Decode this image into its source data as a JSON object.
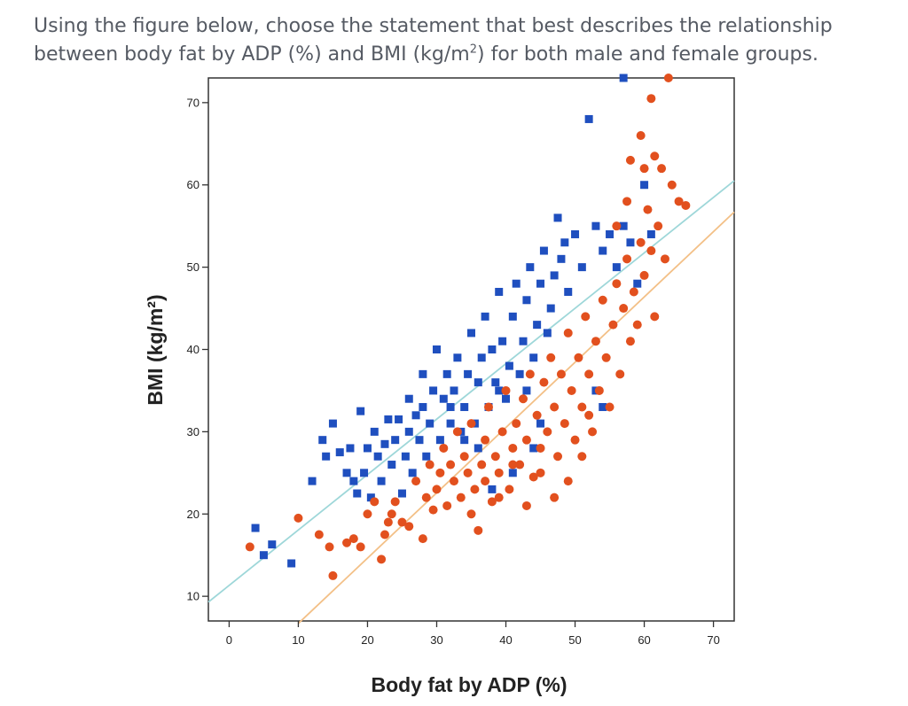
{
  "question": {
    "text_before_sup": "Using the figure below, choose the statement that best describes the relationship between body fat by ADP (%) and BMI (kg/m",
    "sup": "2",
    "text_after_sup": ") for both male and female groups."
  },
  "colors": {
    "male_series": "#1f4fbf",
    "female_series": "#e2501e",
    "male_fit": "#9ed7d9",
    "female_fit": "#f3c087",
    "axis": "#333333"
  },
  "chart_data": {
    "type": "scatter",
    "xlabel": "Body fat by ADP (%)",
    "ylabel": "BMI (kg/m²)",
    "xlim": [
      -3,
      73
    ],
    "ylim": [
      7,
      73
    ],
    "x_ticks": [
      0,
      10,
      20,
      30,
      40,
      50,
      60,
      70
    ],
    "y_ticks": [
      10,
      20,
      30,
      40,
      50,
      60,
      70
    ],
    "x_tick_labels": [
      "0",
      "10",
      "20",
      "30",
      "40",
      "50",
      "60",
      "70"
    ],
    "y_tick_labels": [
      "10",
      "20",
      "30",
      "40",
      "50",
      "60",
      "70"
    ],
    "grid": false,
    "legend": "none",
    "series": [
      {
        "marker": "square",
        "color_key": "male_series",
        "points": [
          [
            3.8,
            18.3
          ],
          [
            5,
            15
          ],
          [
            6.2,
            16.3
          ],
          [
            9,
            14
          ],
          [
            12,
            24
          ],
          [
            13.5,
            29
          ],
          [
            14,
            27
          ],
          [
            15,
            31
          ],
          [
            16,
            27.5
          ],
          [
            17,
            25
          ],
          [
            17.5,
            28
          ],
          [
            18,
            24
          ],
          [
            18.5,
            22.5
          ],
          [
            19,
            32.5
          ],
          [
            19.5,
            25
          ],
          [
            20,
            28
          ],
          [
            20.5,
            22
          ],
          [
            21,
            30
          ],
          [
            21.5,
            27
          ],
          [
            22,
            24
          ],
          [
            22.5,
            28.5
          ],
          [
            23,
            31.5
          ],
          [
            23.5,
            26
          ],
          [
            24,
            29
          ],
          [
            24.5,
            31.5
          ],
          [
            25,
            22.5
          ],
          [
            25.5,
            27
          ],
          [
            26,
            30
          ],
          [
            26.5,
            25
          ],
          [
            27,
            32
          ],
          [
            27.5,
            29
          ],
          [
            28,
            33
          ],
          [
            28.5,
            27
          ],
          [
            29,
            31
          ],
          [
            29.5,
            35
          ],
          [
            30,
            40
          ],
          [
            30.5,
            29
          ],
          [
            31,
            34
          ],
          [
            31.5,
            37
          ],
          [
            32,
            31
          ],
          [
            32.5,
            35
          ],
          [
            33,
            39
          ],
          [
            33.5,
            30
          ],
          [
            34,
            33
          ],
          [
            34.5,
            37
          ],
          [
            35,
            42
          ],
          [
            35.5,
            31
          ],
          [
            36,
            36
          ],
          [
            36.5,
            39
          ],
          [
            37,
            44
          ],
          [
            37.5,
            33
          ],
          [
            38,
            40
          ],
          [
            38.5,
            36
          ],
          [
            39,
            47
          ],
          [
            39.5,
            41
          ],
          [
            40,
            34
          ],
          [
            40.5,
            38
          ],
          [
            41,
            44
          ],
          [
            41.5,
            48
          ],
          [
            42,
            37
          ],
          [
            42.5,
            41
          ],
          [
            43,
            46
          ],
          [
            43.5,
            50
          ],
          [
            44,
            39
          ],
          [
            44.5,
            43
          ],
          [
            45,
            48
          ],
          [
            45.5,
            52
          ],
          [
            46,
            42
          ],
          [
            46.5,
            45
          ],
          [
            47,
            49
          ],
          [
            47.5,
            56
          ],
          [
            48,
            51
          ],
          [
            48.5,
            53
          ],
          [
            49,
            47
          ],
          [
            50,
            54
          ],
          [
            51,
            50
          ],
          [
            52,
            68
          ],
          [
            53,
            55
          ],
          [
            54,
            52
          ],
          [
            55,
            54
          ],
          [
            56,
            50
          ],
          [
            57,
            55
          ],
          [
            58,
            53
          ],
          [
            59,
            48
          ],
          [
            60,
            60
          ],
          [
            61,
            54
          ],
          [
            57,
            73
          ],
          [
            53,
            35
          ],
          [
            54,
            33
          ],
          [
            44,
            28
          ],
          [
            45,
            31
          ],
          [
            41,
            25
          ],
          [
            38,
            23
          ],
          [
            34,
            29
          ],
          [
            36,
            28
          ],
          [
            32,
            33
          ],
          [
            28,
            37
          ],
          [
            26,
            34
          ],
          [
            39,
            35
          ],
          [
            43,
            35
          ]
        ]
      },
      {
        "marker": "circle",
        "color_key": "female_series",
        "points": [
          [
            3,
            16
          ],
          [
            10,
            19.5
          ],
          [
            13,
            17.5
          ],
          [
            14.5,
            16
          ],
          [
            15,
            12.5
          ],
          [
            17,
            16.5
          ],
          [
            18,
            17
          ],
          [
            19,
            16
          ],
          [
            20,
            20
          ],
          [
            21,
            21.5
          ],
          [
            22,
            14.5
          ],
          [
            22.5,
            17.5
          ],
          [
            23,
            19
          ],
          [
            23.5,
            20
          ],
          [
            24,
            21.5
          ],
          [
            25,
            19
          ],
          [
            26,
            18.5
          ],
          [
            27,
            24
          ],
          [
            28,
            17
          ],
          [
            28.5,
            22
          ],
          [
            29,
            26
          ],
          [
            29.5,
            20.5
          ],
          [
            30,
            23
          ],
          [
            30.5,
            25
          ],
          [
            31,
            28
          ],
          [
            31.5,
            21
          ],
          [
            32,
            26
          ],
          [
            32.5,
            24
          ],
          [
            33,
            30
          ],
          [
            33.5,
            22
          ],
          [
            34,
            27
          ],
          [
            34.5,
            25
          ],
          [
            35,
            31
          ],
          [
            35.5,
            23
          ],
          [
            36,
            18
          ],
          [
            36.5,
            26
          ],
          [
            37,
            29
          ],
          [
            37.5,
            33
          ],
          [
            38,
            21.5
          ],
          [
            38.5,
            27
          ],
          [
            39,
            25
          ],
          [
            39.5,
            30
          ],
          [
            40,
            35
          ],
          [
            40.5,
            23
          ],
          [
            41,
            28
          ],
          [
            41.5,
            31
          ],
          [
            42,
            26
          ],
          [
            42.5,
            34
          ],
          [
            43,
            29
          ],
          [
            43.5,
            37
          ],
          [
            44,
            24.5
          ],
          [
            44.5,
            32
          ],
          [
            45,
            28
          ],
          [
            45.5,
            36
          ],
          [
            46,
            30
          ],
          [
            46.5,
            39
          ],
          [
            47,
            33
          ],
          [
            47.5,
            27
          ],
          [
            48,
            37
          ],
          [
            48.5,
            31
          ],
          [
            49,
            42
          ],
          [
            49.5,
            35
          ],
          [
            50,
            29
          ],
          [
            50.5,
            39
          ],
          [
            51,
            33
          ],
          [
            51.5,
            44
          ],
          [
            52,
            37
          ],
          [
            52.5,
            30
          ],
          [
            53,
            41
          ],
          [
            53.5,
            35
          ],
          [
            54,
            46
          ],
          [
            54.5,
            39
          ],
          [
            55,
            33
          ],
          [
            55.5,
            43
          ],
          [
            56,
            48
          ],
          [
            56.5,
            37
          ],
          [
            57,
            45
          ],
          [
            57.5,
            51
          ],
          [
            58,
            41
          ],
          [
            58.5,
            47
          ],
          [
            59,
            43
          ],
          [
            59.5,
            53
          ],
          [
            60,
            49
          ],
          [
            60.5,
            57
          ],
          [
            61,
            52
          ],
          [
            61.5,
            44
          ],
          [
            62,
            55
          ],
          [
            63,
            51
          ],
          [
            60,
            62
          ],
          [
            59.5,
            66
          ],
          [
            61.5,
            63.5
          ],
          [
            62.5,
            62
          ],
          [
            64,
            60
          ],
          [
            65,
            58
          ],
          [
            61,
            70.5
          ],
          [
            63.5,
            73
          ],
          [
            66,
            57.5
          ],
          [
            58,
            63
          ],
          [
            57.5,
            58
          ],
          [
            56,
            55
          ],
          [
            52,
            32
          ],
          [
            51,
            27
          ],
          [
            49,
            24
          ],
          [
            47,
            22
          ],
          [
            43,
            21
          ],
          [
            45,
            25
          ],
          [
            41,
            26
          ],
          [
            39,
            22
          ],
          [
            37,
            24
          ],
          [
            35,
            20
          ]
        ]
      }
    ],
    "fit_lines": [
      {
        "color_key": "male_fit",
        "x": [
          -3,
          73
        ],
        "y": [
          9.3,
          60.5
        ]
      },
      {
        "color_key": "female_fit",
        "x": [
          10,
          73
        ],
        "y": [
          6.7,
          56.7
        ]
      }
    ]
  }
}
